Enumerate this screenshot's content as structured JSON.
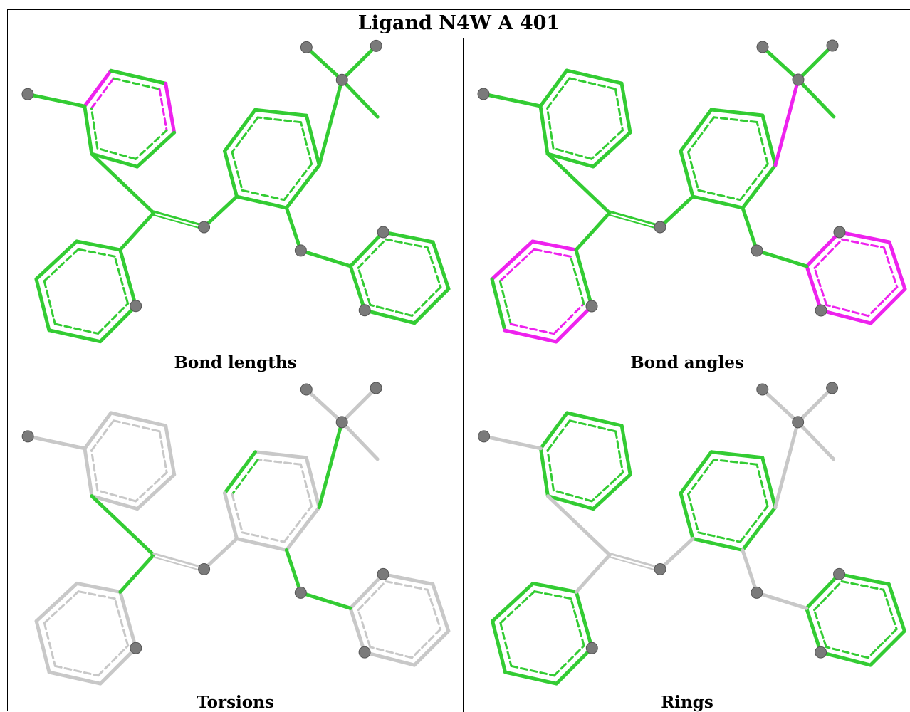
{
  "title": "Ligand N4W A 401",
  "colors": {
    "green": "#33cc33",
    "magenta": "#ee22ee",
    "grey": "#c8c8c8",
    "atom": "#7a7a7a"
  },
  "panels": [
    {
      "caption": "Bond lengths",
      "default_color": "green",
      "highlight_color": "magenta",
      "highlight_bonds": [
        "a1-a2",
        "a3-a4"
      ]
    },
    {
      "caption": "Bond angles",
      "default_color": "green",
      "highlight_color": "magenta",
      "highlight_bonds": [
        "s-C1",
        "b1-b2",
        "b2-b3",
        "b4-b5",
        "b5-b6",
        "c6-c1",
        "c1-c2",
        "c2-c3",
        "c3-c4",
        "c4-c5",
        "c5-c6",
        "c1-c7"
      ]
    },
    {
      "caption": "Torsions",
      "default_color": "grey",
      "highlight_color": "green",
      "highlight_bonds": [
        "s-C1",
        "b2-N1",
        "V-a1",
        "N1-V",
        "d2-d3",
        "O2-e1"
      ]
    },
    {
      "caption": "Rings",
      "default_color": "grey",
      "highlight_color": "green",
      "highlight_bonds": [
        "ring:a",
        "ring:b",
        "ring:c",
        "ring:d"
      ]
    }
  ]
}
